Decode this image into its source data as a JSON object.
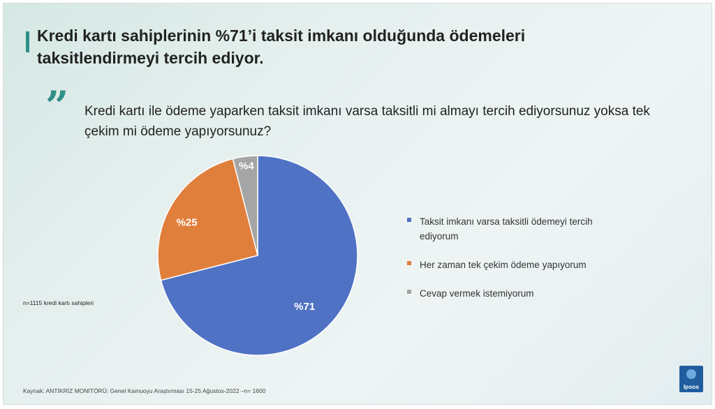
{
  "slide": {
    "title": "Kredi kartı sahiplerinin %71’i taksit imkanı olduğunda ödemeleri taksitlendirmeyi tercih ediyor.",
    "quote_mark": "”",
    "question": "Kredi kartı ile ödeme yaparken taksit imkanı varsa taksitli mi almayı tercih ediyorsunuz yoksa tek çekim mi ödeme yapıyorsunuz?",
    "sample_note": "n=1115 kredi kartı sahipleri",
    "source": "Kaynak: ANTİKRİZ MONİTÖRÜ: Genel Kamuoyu Araştırması 15-25 Ağustos-2022 –n= 1600",
    "small_print": "",
    "logo_text": "Ipsos",
    "logo_color": "#1f5d9e",
    "accent_color": "#2f8f86"
  },
  "chart_data": {
    "type": "pie",
    "title": "",
    "slices": [
      {
        "label": "Taksit imkanı varsa taksitli ödemeyi tercih ediyorum",
        "value": 71,
        "data_label": "%71",
        "color": "#4f72c4",
        "label_color": "#ffffff"
      },
      {
        "label": "Her zaman tek çekim ödeme yapıyorum",
        "value": 25,
        "data_label": "%25",
        "color": "#e07f3c",
        "label_color": "#ffffff"
      },
      {
        "label": "Cevap vermek istemiyorum",
        "value": 4,
        "data_label": "%4",
        "color": "#a5a5a5",
        "label_color": "#ffffff"
      }
    ],
    "start_angle_deg": 0,
    "direction": "clockwise",
    "legend_position": "right"
  }
}
